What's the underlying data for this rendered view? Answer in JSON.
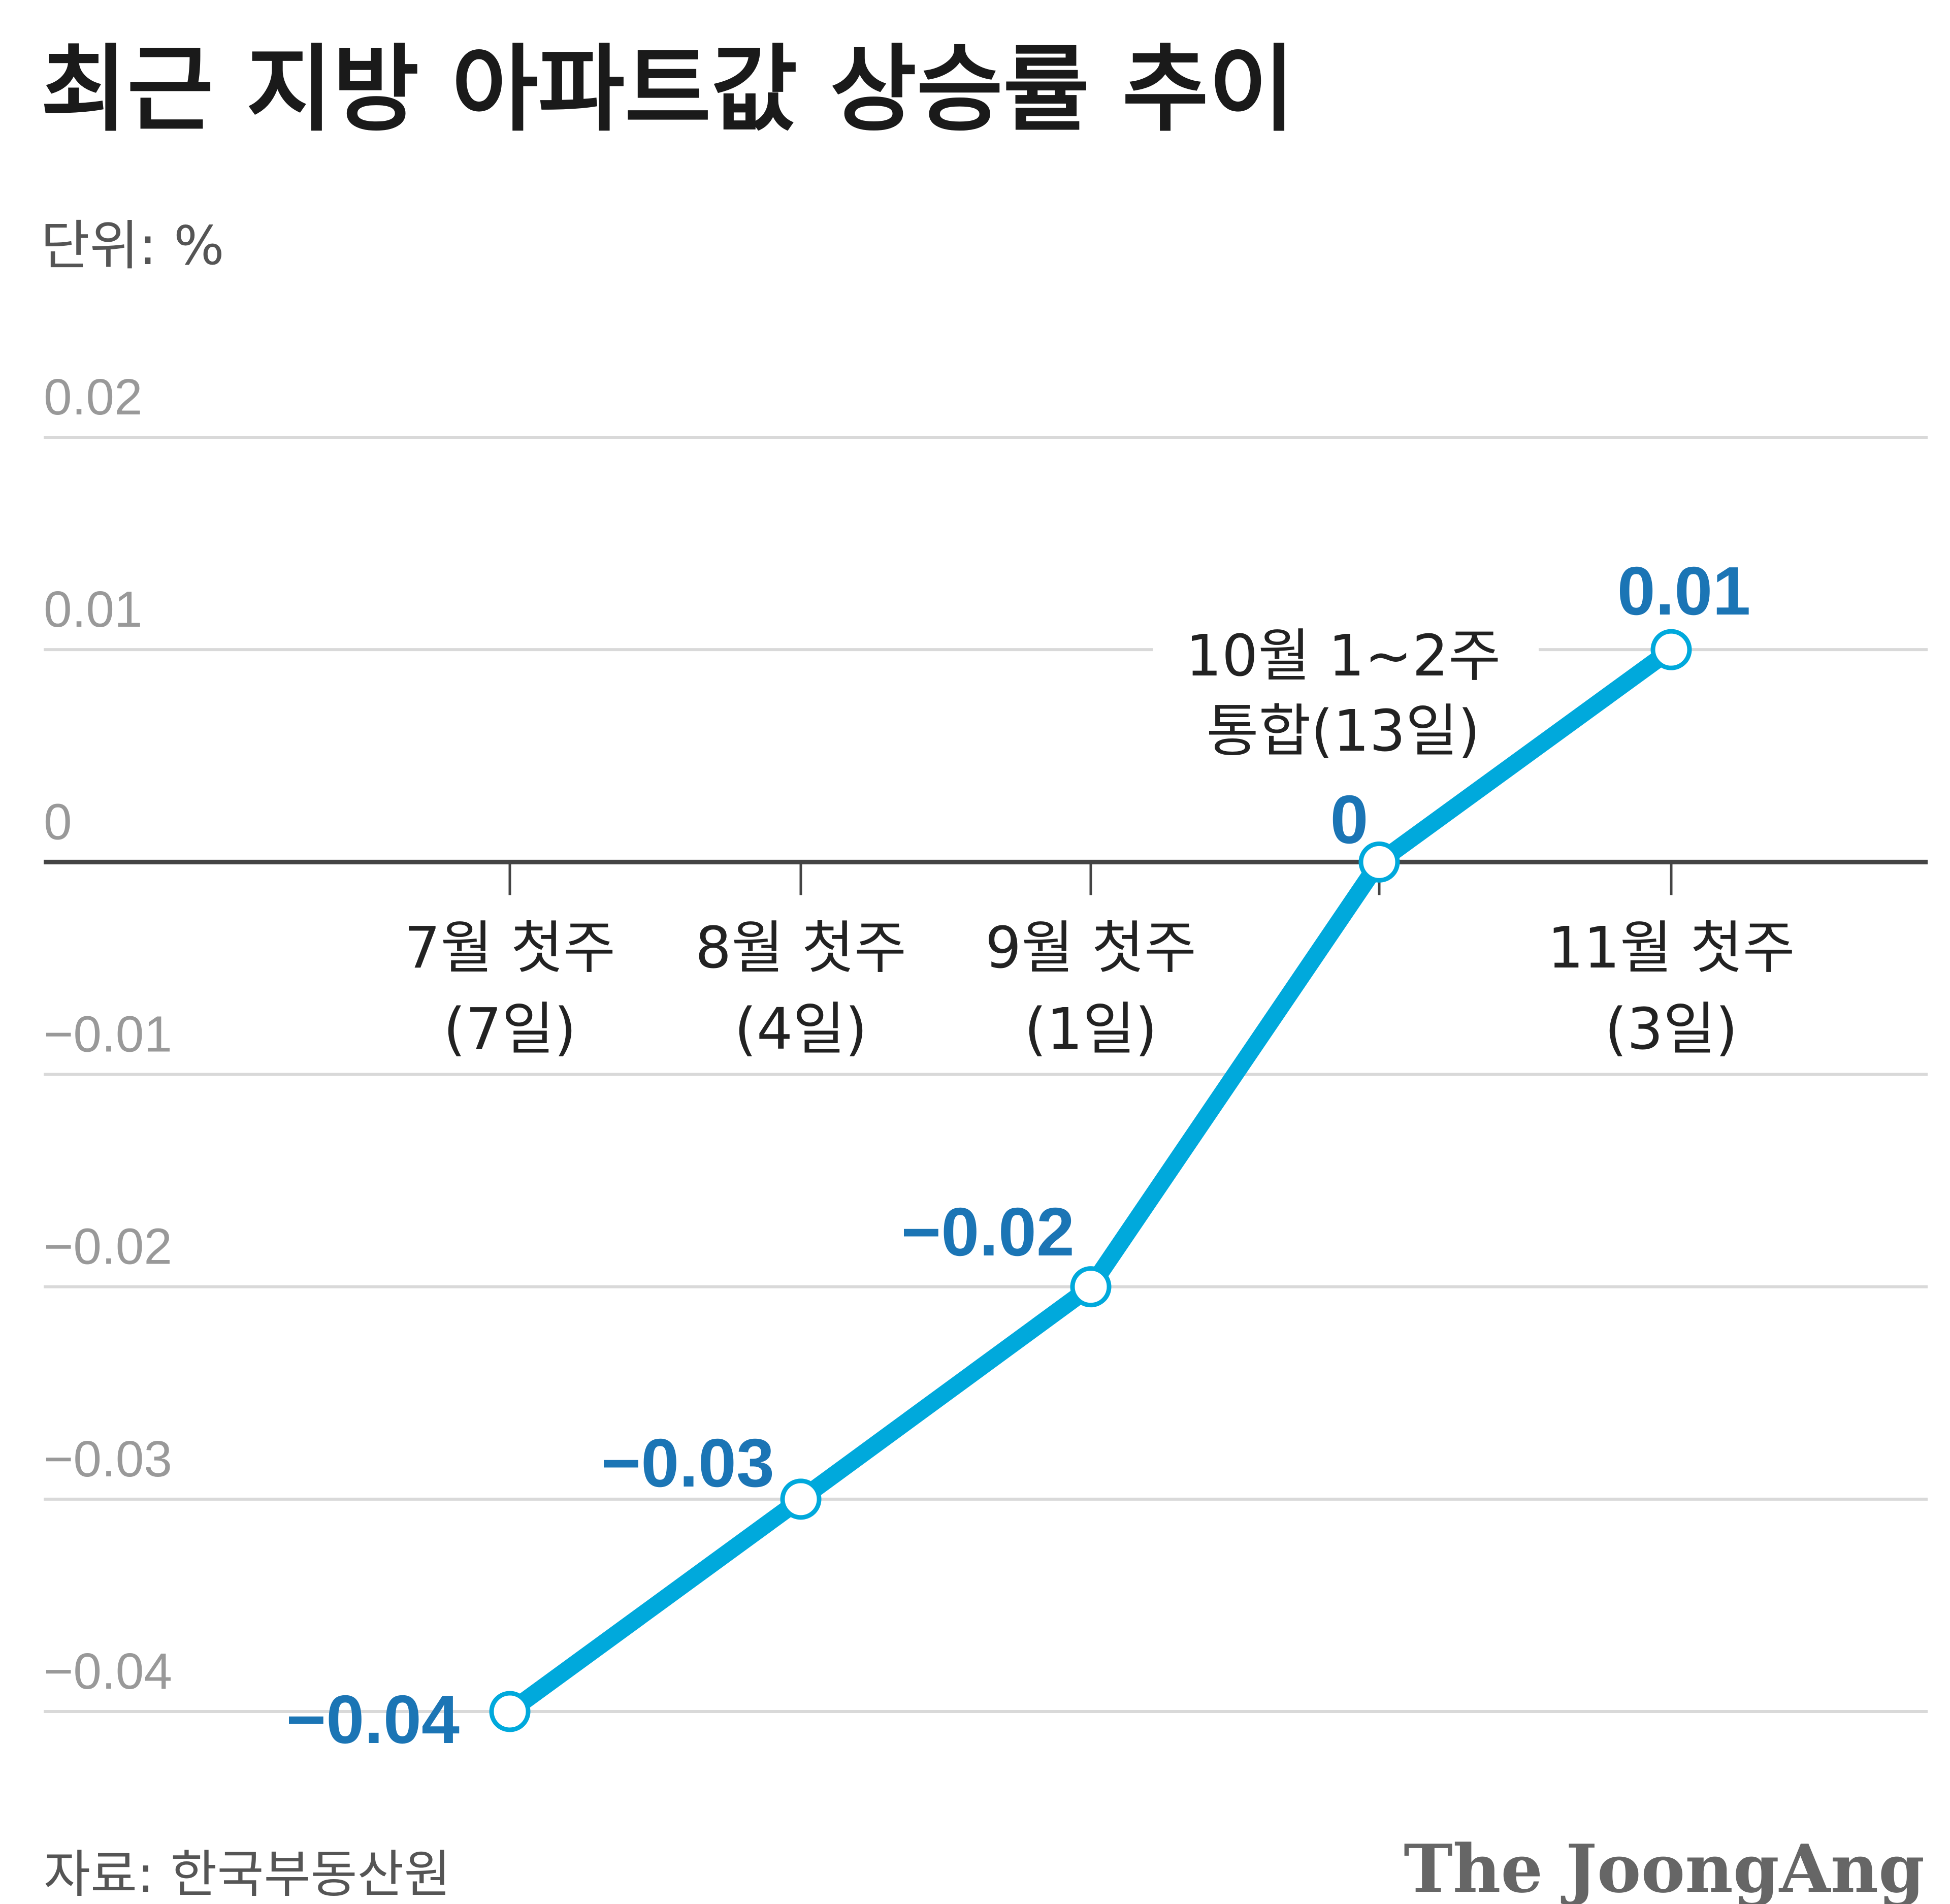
{
  "title": "최근 지방 아파트값 상승률 추이",
  "unit": "단위: %",
  "source": "자료: 한국부동산원",
  "logo": "The JoongAng",
  "colors": {
    "line": "#00a9dc",
    "label": "#1b75b5",
    "grid": "#d9d9d9",
    "axis": "#444444"
  },
  "chart_data": {
    "type": "line",
    "title": "최근 지방 아파트값 상승률 추이",
    "ylabel": "단위: %",
    "ylim": [
      -0.04,
      0.02
    ],
    "yticks": [
      0.02,
      0.01,
      0,
      -0.01,
      -0.02,
      -0.03,
      -0.04
    ],
    "ytick_labels": [
      "0.02",
      "0.01",
      "0",
      "−0.01",
      "−0.02",
      "−0.03",
      "−0.04"
    ],
    "grid": true,
    "categories": [
      [
        "7월 첫주",
        "(7일)"
      ],
      [
        "8월 첫주",
        "(4일)"
      ],
      [
        "9월 첫주",
        "(1일)"
      ],
      [
        "10월 1~2주",
        "통합(13일)"
      ],
      [
        "11월 첫주",
        "(3일)"
      ]
    ],
    "values": [
      -0.04,
      -0.03,
      -0.02,
      0,
      0.01
    ],
    "data_labels": [
      "−0.04",
      "−0.03",
      "−0.02",
      "0",
      "0.01"
    ]
  }
}
